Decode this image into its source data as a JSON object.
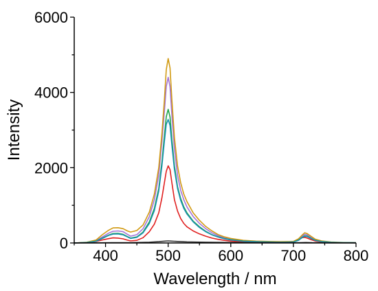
{
  "chart_data": {
    "type": "line",
    "xlabel": "Wavelength / nm",
    "ylabel": "Intensity",
    "xlim": [
      350,
      800
    ],
    "ylim": [
      0,
      6000
    ],
    "xticks": [
      "400",
      "500",
      "600",
      "700",
      "800"
    ],
    "yticks": [
      "0",
      "2000",
      "4000",
      "6000"
    ],
    "grid": false,
    "series": [
      {
        "color": "#e01e1e",
        "x": [
          350,
          370,
          385,
          395,
          405,
          412,
          420,
          428,
          435,
          440,
          450,
          460,
          470,
          478,
          485,
          490,
          494,
          497,
          500,
          503,
          506,
          510,
          515,
          520,
          525,
          530,
          540,
          550,
          560,
          570,
          580,
          590,
          600,
          620,
          640,
          660,
          680,
          700,
          708,
          714,
          718,
          722,
          728,
          735,
          745,
          760,
          780,
          800
        ],
        "y": [
          0,
          10,
          40,
          80,
          115,
          135,
          130,
          110,
          75,
          55,
          70,
          140,
          300,
          500,
          800,
          1200,
          1600,
          1900,
          2050,
          1950,
          1600,
          1150,
          850,
          650,
          520,
          430,
          320,
          240,
          180,
          130,
          95,
          70,
          50,
          30,
          20,
          15,
          15,
          40,
          90,
          140,
          150,
          130,
          90,
          50,
          30,
          15,
          8,
          5
        ]
      },
      {
        "color": "#a272d8",
        "x": [
          350,
          370,
          385,
          395,
          405,
          412,
          420,
          428,
          435,
          440,
          450,
          460,
          470,
          478,
          485,
          490,
          494,
          497,
          500,
          503,
          506,
          510,
          515,
          520,
          525,
          530,
          540,
          550,
          560,
          570,
          580,
          590,
          600,
          620,
          640,
          660,
          680,
          700,
          708,
          714,
          718,
          722,
          728,
          735,
          745,
          760,
          780,
          800
        ],
        "y": [
          0,
          15,
          60,
          160,
          260,
          310,
          320,
          300,
          230,
          180,
          220,
          380,
          700,
          1150,
          1800,
          2700,
          3500,
          4150,
          4400,
          4150,
          3400,
          2500,
          1800,
          1400,
          1150,
          960,
          700,
          520,
          380,
          270,
          190,
          140,
          100,
          60,
          40,
          30,
          25,
          30,
          90,
          180,
          230,
          215,
          150,
          85,
          45,
          20,
          10,
          5
        ]
      },
      {
        "color": "#d19a12",
        "x": [
          350,
          370,
          385,
          395,
          405,
          412,
          420,
          428,
          435,
          440,
          450,
          460,
          470,
          478,
          485,
          490,
          494,
          497,
          500,
          503,
          506,
          510,
          515,
          520,
          525,
          530,
          540,
          550,
          560,
          570,
          580,
          590,
          600,
          620,
          640,
          660,
          680,
          700,
          708,
          714,
          718,
          722,
          728,
          735,
          745,
          760,
          780,
          800
        ],
        "y": [
          0,
          20,
          80,
          220,
          340,
          400,
          405,
          380,
          320,
          290,
          330,
          480,
          820,
          1300,
          2000,
          2900,
          3800,
          4600,
          4900,
          4650,
          3800,
          2800,
          2050,
          1600,
          1300,
          1100,
          800,
          600,
          440,
          320,
          220,
          160,
          120,
          70,
          50,
          40,
          35,
          40,
          110,
          210,
          270,
          250,
          180,
          100,
          55,
          25,
          12,
          5
        ]
      },
      {
        "color": "#1fa34a",
        "x": [
          350,
          370,
          385,
          395,
          405,
          412,
          420,
          428,
          435,
          440,
          450,
          460,
          470,
          478,
          485,
          490,
          494,
          497,
          500,
          503,
          506,
          510,
          515,
          520,
          525,
          530,
          540,
          550,
          560,
          570,
          580,
          590,
          600,
          620,
          640,
          660,
          680,
          700,
          708,
          714,
          718,
          722,
          728,
          735,
          745,
          760,
          780,
          800
        ],
        "y": [
          0,
          12,
          50,
          130,
          210,
          250,
          255,
          230,
          170,
          130,
          160,
          290,
          560,
          920,
          1450,
          2150,
          2850,
          3350,
          3550,
          3350,
          2750,
          2050,
          1500,
          1180,
          960,
          800,
          580,
          430,
          310,
          220,
          160,
          115,
          85,
          50,
          35,
          25,
          20,
          25,
          75,
          150,
          190,
          180,
          125,
          70,
          38,
          18,
          9,
          5
        ]
      },
      {
        "color": "#1a8fb0",
        "x": [
          350,
          370,
          385,
          395,
          405,
          412,
          420,
          428,
          435,
          440,
          450,
          460,
          470,
          478,
          485,
          490,
          494,
          497,
          500,
          503,
          506,
          510,
          515,
          520,
          525,
          530,
          540,
          550,
          560,
          570,
          580,
          590,
          600,
          620,
          640,
          660,
          680,
          700,
          708,
          714,
          718,
          722,
          728,
          735,
          745,
          760,
          780,
          800
        ],
        "y": [
          0,
          12,
          45,
          120,
          200,
          235,
          240,
          215,
          160,
          120,
          150,
          270,
          520,
          860,
          1380,
          2050,
          2700,
          3150,
          3280,
          3120,
          2600,
          1950,
          1450,
          1130,
          920,
          770,
          560,
          410,
          300,
          215,
          155,
          110,
          80,
          48,
          33,
          24,
          20,
          24,
          70,
          140,
          180,
          170,
          120,
          68,
          36,
          17,
          9,
          5
        ]
      },
      {
        "color": "#303030",
        "x": [
          350,
          380,
          410,
          440,
          470,
          485,
          495,
          500,
          505,
          515,
          530,
          560,
          600,
          650,
          700,
          710,
          720,
          730,
          760,
          800
        ],
        "y": [
          0,
          3,
          8,
          10,
          20,
          35,
          50,
          55,
          50,
          40,
          30,
          20,
          12,
          8,
          6,
          8,
          12,
          8,
          4,
          2
        ]
      }
    ]
  }
}
